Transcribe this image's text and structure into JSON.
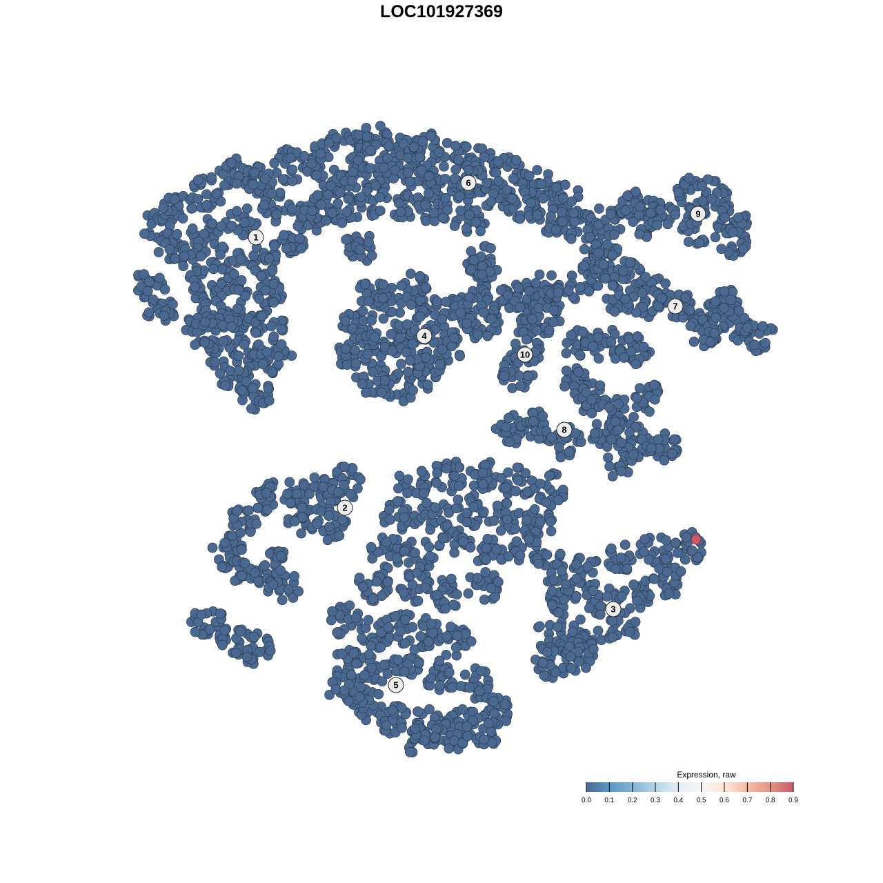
{
  "chart_data": {
    "type": "scatter",
    "title": "LOC101927369",
    "xlabel": "",
    "ylabel": "",
    "axes_visible": false,
    "grid": false,
    "point_color_default": "#4a6890",
    "point_edge_color": "#2b3b52",
    "clusters": [
      {
        "label": "1",
        "label_pos": [
          -26.9,
          29.6
        ],
        "expression": 0.0,
        "points": [
          [
            -41,
            31
          ],
          [
            -38,
            34
          ],
          [
            -34,
            36
          ],
          [
            -30,
            39
          ],
          [
            -26,
            38
          ],
          [
            -22,
            40
          ],
          [
            -24,
            34
          ],
          [
            -20,
            32
          ],
          [
            -29,
            32
          ],
          [
            -34,
            30
          ],
          [
            -39,
            28
          ],
          [
            -42,
            23
          ],
          [
            -36,
            26
          ],
          [
            -31,
            26
          ],
          [
            -26,
            26
          ],
          [
            -22,
            28
          ],
          [
            -34,
            22
          ],
          [
            -30,
            22
          ],
          [
            -25,
            22
          ],
          [
            -33,
            18
          ],
          [
            -29,
            17
          ],
          [
            -25,
            17
          ],
          [
            -32,
            13
          ],
          [
            -28,
            13
          ],
          [
            -24,
            12
          ],
          [
            -30,
            9
          ],
          [
            -27,
            7
          ],
          [
            -35,
            16
          ],
          [
            -41,
            19
          ]
        ]
      },
      {
        "label": "2",
        "label_pos": [
          -14,
          -9.6
        ],
        "expression": 0.0,
        "points": [
          [
            -31,
            -16
          ],
          [
            -28,
            -19
          ],
          [
            -24,
            -18
          ],
          [
            -29,
            -12
          ],
          [
            -25,
            -8
          ],
          [
            -21,
            -7
          ],
          [
            -17,
            -7
          ],
          [
            -14,
            -6
          ],
          [
            -20,
            -11
          ],
          [
            -16,
            -12
          ],
          [
            -23,
            -21
          ],
          [
            -34,
            -26
          ],
          [
            -30,
            -29
          ],
          [
            -27,
            -30
          ]
        ]
      },
      {
        "label": "3",
        "label_pos": [
          24.9,
          -24.3
        ],
        "expression": 0.0,
        "points": [
          [
            -4,
            -6
          ],
          [
            1,
            -5
          ],
          [
            6,
            -5
          ],
          [
            11,
            -6
          ],
          [
            16,
            -7
          ],
          [
            -6,
            -11
          ],
          [
            -1,
            -11
          ],
          [
            4,
            -10
          ],
          [
            9,
            -11
          ],
          [
            14,
            -12
          ],
          [
            -8,
            -16
          ],
          [
            -3,
            -16
          ],
          [
            2,
            -15
          ],
          [
            7,
            -16
          ],
          [
            12,
            -16
          ],
          [
            -10,
            -21
          ],
          [
            -4,
            -21
          ],
          [
            1,
            -22
          ],
          [
            6,
            -21
          ],
          [
            16,
            -18
          ],
          [
            21,
            -19
          ],
          [
            26,
            -17
          ],
          [
            31,
            -16
          ],
          [
            36,
            -15
          ],
          [
            18,
            -23
          ],
          [
            23,
            -23
          ],
          [
            28,
            -22
          ],
          [
            33,
            -20
          ],
          [
            16,
            -28
          ],
          [
            21,
            -28
          ],
          [
            26,
            -27
          ],
          [
            16,
            -32
          ],
          [
            20,
            -31
          ]
        ]
      },
      {
        "label": "4",
        "label_pos": [
          -2.5,
          15.3
        ],
        "expression": 0.0,
        "points": [
          [
            -12,
            17
          ],
          [
            -8,
            20
          ],
          [
            -4,
            22
          ],
          [
            0,
            19
          ],
          [
            1,
            14
          ],
          [
            -2,
            10
          ],
          [
            -6,
            8
          ],
          [
            -10,
            9
          ],
          [
            -13,
            13
          ],
          [
            -6,
            15
          ],
          [
            -3,
            17
          ],
          [
            -9,
            14
          ],
          [
            -4,
            12
          ],
          [
            -10,
            21
          ]
        ]
      },
      {
        "label": "5",
        "label_pos": [
          -6.6,
          -35.3
        ],
        "expression": 0.0,
        "points": [
          [
            -14,
            -26
          ],
          [
            -10,
            -28
          ],
          [
            -6,
            -27
          ],
          [
            -2,
            -28
          ],
          [
            2,
            -29
          ],
          [
            -14,
            -32
          ],
          [
            -10,
            -33
          ],
          [
            -5,
            -32
          ],
          [
            0,
            -34
          ],
          [
            5,
            -35
          ],
          [
            -11,
            -38
          ],
          [
            -7,
            -40
          ],
          [
            -2,
            -41
          ],
          [
            3,
            -41
          ],
          [
            8,
            -39
          ],
          [
            -4,
            -43
          ],
          [
            1,
            -43
          ],
          [
            6,
            -42
          ],
          [
            -14,
            -36
          ]
        ]
      },
      {
        "label": "6",
        "label_pos": [
          3.9,
          37.5
        ],
        "expression": 0.0,
        "points": [
          [
            -18,
            41
          ],
          [
            -14,
            43
          ],
          [
            -10,
            44
          ],
          [
            -6,
            42
          ],
          [
            -2,
            42.5
          ],
          [
            2,
            41.5
          ],
          [
            6,
            40.5
          ],
          [
            10,
            39
          ],
          [
            14,
            37
          ],
          [
            18,
            35
          ],
          [
            20,
            31
          ],
          [
            -16,
            38
          ],
          [
            -12,
            39
          ],
          [
            -8,
            39
          ],
          [
            -4,
            39
          ],
          [
            0,
            38
          ],
          [
            4,
            37
          ],
          [
            8,
            36
          ],
          [
            12,
            34
          ],
          [
            16,
            32
          ],
          [
            -18,
            34
          ],
          [
            -14,
            34
          ],
          [
            -10,
            35
          ],
          [
            -5,
            34
          ],
          [
            -1,
            34
          ],
          [
            4,
            32
          ],
          [
            6,
            26
          ],
          [
            5,
            24
          ],
          [
            -12,
            28
          ]
        ]
      },
      {
        "label": "7",
        "label_pos": [
          33.9,
          19.6
        ],
        "expression": 0.0,
        "points": [
          [
            21,
            24
          ],
          [
            24,
            26
          ],
          [
            27,
            24
          ],
          [
            31,
            22
          ],
          [
            35,
            20
          ],
          [
            39,
            18
          ],
          [
            43,
            17
          ],
          [
            46,
            15
          ],
          [
            38,
            16
          ],
          [
            41,
            20
          ],
          [
            26,
            21
          ],
          [
            23,
            28
          ],
          [
            30,
            20
          ]
        ]
      },
      {
        "label": "8",
        "label_pos": [
          17.8,
          1.7
        ],
        "expression": 0.0,
        "points": [
          [
            20,
            14
          ],
          [
            24,
            14
          ],
          [
            28,
            13
          ],
          [
            20,
            9
          ],
          [
            22,
            6
          ],
          [
            26,
            4
          ],
          [
            30,
            6
          ],
          [
            28,
            0
          ],
          [
            32,
            -1
          ],
          [
            26,
            -3
          ],
          [
            24,
            1
          ],
          [
            10,
            2
          ],
          [
            14,
            2
          ],
          [
            18,
            0
          ]
        ]
      },
      {
        "label": "9",
        "label_pos": [
          37.2,
          33
        ],
        "expression": 0.0,
        "points": [
          [
            24,
            32
          ],
          [
            28,
            34
          ],
          [
            32,
            33
          ],
          [
            36,
            36
          ],
          [
            39,
            36
          ],
          [
            42,
            32
          ],
          [
            42,
            29
          ],
          [
            37,
            31
          ],
          [
            30,
            32
          ]
        ]
      },
      {
        "label": "10",
        "label_pos": [
          12.1,
          12.6
        ],
        "expression": 0.0,
        "points": [
          [
            4,
            19
          ],
          [
            8,
            20
          ],
          [
            12,
            21
          ],
          [
            15,
            22
          ],
          [
            13,
            17
          ],
          [
            12,
            13
          ],
          [
            11,
            10
          ],
          [
            15,
            18
          ],
          [
            6,
            17
          ],
          [
            17,
            21
          ]
        ]
      }
    ],
    "highlighted_points": [
      {
        "x": 36.9,
        "y": -14.2,
        "expression": 0.9
      }
    ],
    "legend": {
      "title": "Expression, raw",
      "placement": "bottom-right",
      "range": [
        0.0,
        0.9
      ],
      "ticks": [
        "0.0",
        "0.1",
        "0.2",
        "0.3",
        "0.4",
        "0.5",
        "0.6",
        "0.7",
        "0.8",
        "0.9"
      ],
      "colors": [
        "#4d6a94",
        "#5e95c5",
        "#7fb4d6",
        "#b5d5e6",
        "#e3eef4",
        "#f6f6f6",
        "#fde4d8",
        "#f6bea4",
        "#e39384",
        "#c85a6a"
      ]
    }
  }
}
